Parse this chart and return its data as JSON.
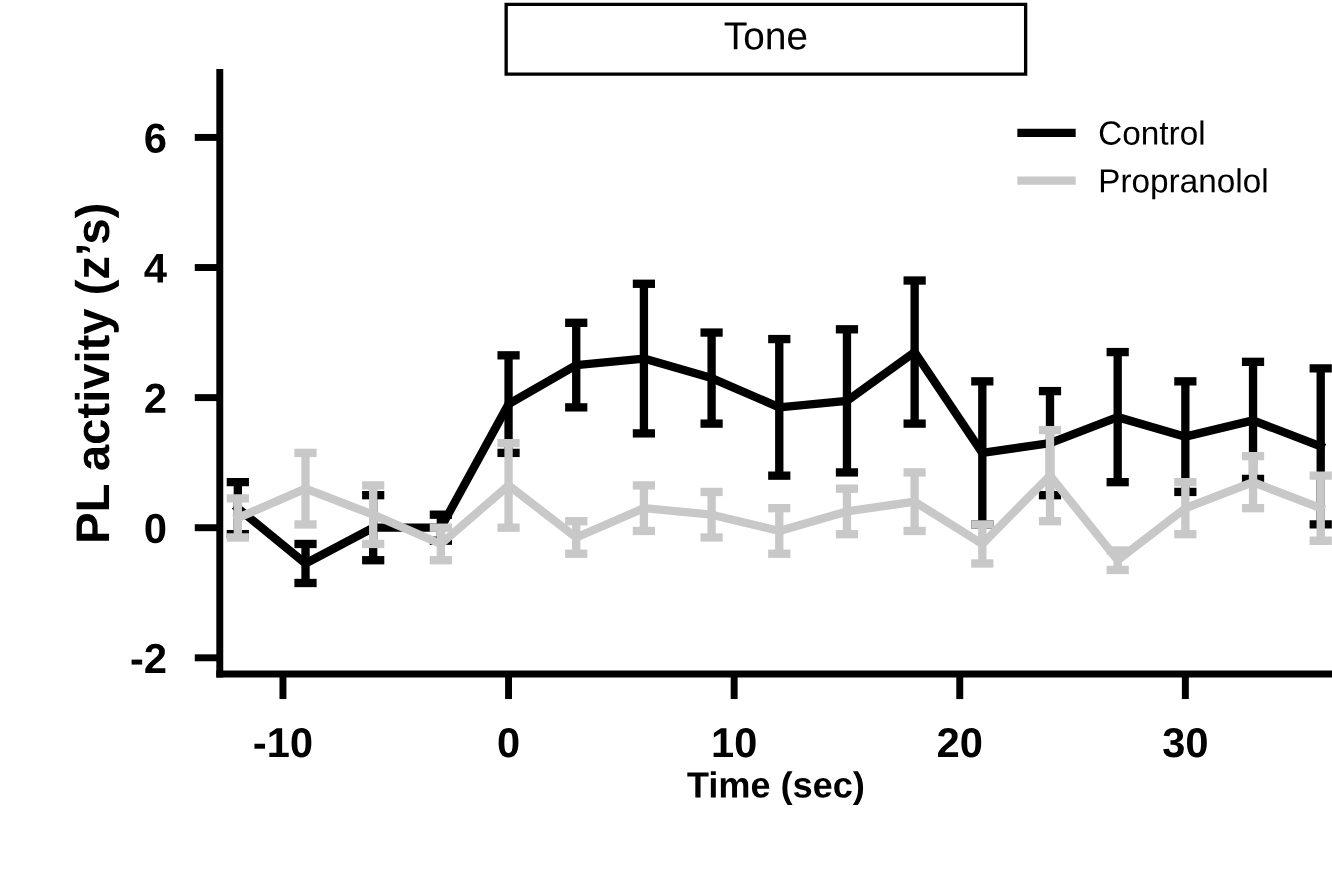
{
  "chart_data": {
    "type": "line",
    "xlabel": "Time (sec)",
    "ylabel": "PL activity (z’s)",
    "x": [
      -12,
      -9,
      -6,
      -3,
      0,
      3,
      6,
      9,
      12,
      15,
      18,
      21,
      24,
      27,
      30,
      33,
      36
    ],
    "series": [
      {
        "name": "Control",
        "color": "#000000",
        "values": [
          0.3,
          -0.55,
          0.0,
          0.0,
          1.9,
          2.5,
          2.6,
          2.3,
          1.85,
          1.95,
          2.7,
          1.15,
          1.3,
          1.7,
          1.4,
          1.65,
          1.25
        ],
        "errors": [
          0.4,
          0.3,
          0.5,
          0.2,
          0.75,
          0.65,
          1.15,
          0.7,
          1.05,
          1.1,
          1.1,
          1.1,
          0.8,
          1.0,
          0.85,
          0.9,
          1.2
        ]
      },
      {
        "name": "Propranolol",
        "color": "#c8c8c8",
        "values": [
          0.15,
          0.6,
          0.2,
          -0.25,
          0.65,
          -0.15,
          0.3,
          0.2,
          -0.05,
          0.25,
          0.4,
          -0.25,
          0.8,
          -0.5,
          0.3,
          0.7,
          0.3
        ],
        "errors": [
          0.3,
          0.55,
          0.45,
          0.25,
          0.65,
          0.25,
          0.35,
          0.35,
          0.35,
          0.35,
          0.45,
          0.3,
          0.7,
          0.15,
          0.4,
          0.4,
          0.5
        ]
      }
    ],
    "xlim": [
      -12.8,
      36.5
    ],
    "ylim": [
      -2.25,
      7.0
    ],
    "xticks": [
      -10,
      0,
      10,
      20,
      30
    ],
    "yticks": [
      -2,
      0,
      2,
      4,
      6
    ],
    "annotations": [
      "Tone"
    ],
    "legend": "top right",
    "grid": false,
    "marker": "none",
    "line_style": "solid"
  }
}
